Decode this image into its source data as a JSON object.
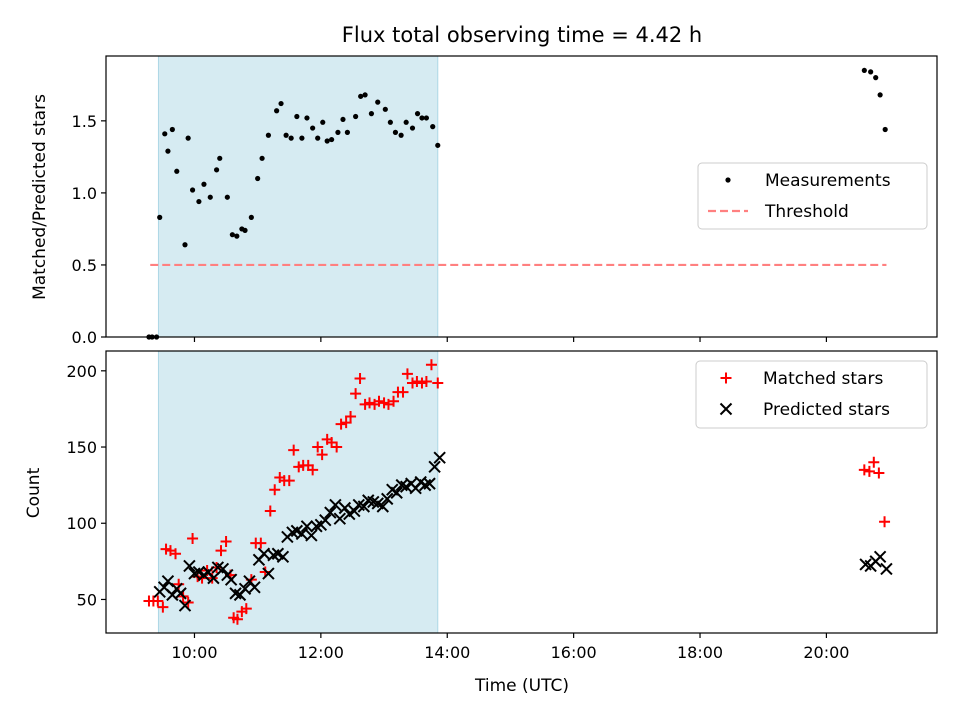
{
  "chart_data": [
    {
      "type": "scatter",
      "title": "Flux total observing time = 4.42 h",
      "xlabel": "",
      "ylabel": "Matched/Predicted stars",
      "xlim": [
        8.6,
        21.75
      ],
      "ylim": [
        0.0,
        1.95
      ],
      "yticks": [
        0.0,
        0.5,
        1.0,
        1.5
      ],
      "yticklabels": [
        "0.0",
        "0.5",
        "1.0",
        "1.5"
      ],
      "xticks": [
        10,
        12,
        14,
        16,
        18,
        20
      ],
      "shaded_span": [
        9.43,
        13.85
      ],
      "threshold": {
        "value": 0.5,
        "x_range": [
          9.3,
          20.95
        ],
        "color": "#ff8080"
      },
      "legend": {
        "position": "center-right",
        "entries": [
          "Measurements",
          "Threshold"
        ]
      },
      "series": [
        {
          "name": "Measurements",
          "color": "#000000",
          "x": [
            9.28,
            9.33,
            9.4,
            9.45,
            9.53,
            9.58,
            9.65,
            9.72,
            9.85,
            9.9,
            9.97,
            10.07,
            10.15,
            10.25,
            10.35,
            10.4,
            10.52,
            10.6,
            10.67,
            10.75,
            10.8,
            10.9,
            11.0,
            11.07,
            11.17,
            11.3,
            11.37,
            11.45,
            11.53,
            11.62,
            11.7,
            11.78,
            11.87,
            11.95,
            12.03,
            12.1,
            12.17,
            12.27,
            12.35,
            12.42,
            12.55,
            12.63,
            12.7,
            12.8,
            12.9,
            13.02,
            13.1,
            13.18,
            13.27,
            13.35,
            13.45,
            13.53,
            13.6,
            13.67,
            13.77,
            13.85,
            20.6,
            20.7,
            20.78,
            20.85,
            20.93
          ],
          "y": [
            0.0,
            0.0,
            0.0,
            0.83,
            1.41,
            1.29,
            1.44,
            1.15,
            0.64,
            1.38,
            1.02,
            0.94,
            1.06,
            0.97,
            1.16,
            1.24,
            0.97,
            0.71,
            0.7,
            0.75,
            0.74,
            0.83,
            1.1,
            1.24,
            1.4,
            1.57,
            1.62,
            1.4,
            1.38,
            1.53,
            1.38,
            1.52,
            1.45,
            1.38,
            1.49,
            1.36,
            1.37,
            1.42,
            1.51,
            1.42,
            1.53,
            1.67,
            1.68,
            1.55,
            1.63,
            1.58,
            1.49,
            1.42,
            1.4,
            1.49,
            1.45,
            1.55,
            1.52,
            1.52,
            1.46,
            1.33,
            1.85,
            1.84,
            1.8,
            1.68,
            1.44
          ]
        }
      ]
    },
    {
      "type": "scatter",
      "title": "",
      "xlabel": "Time (UTC)",
      "ylabel": "Count",
      "xlim": [
        8.6,
        21.75
      ],
      "ylim": [
        28,
        213
      ],
      "yticks": [
        50,
        100,
        150,
        200
      ],
      "yticklabels": [
        "50",
        "100",
        "150",
        "200"
      ],
      "xticks": [
        10,
        12,
        14,
        16,
        18,
        20
      ],
      "xticklabels": [
        "10:00",
        "12:00",
        "14:00",
        "16:00",
        "18:00",
        "20:00"
      ],
      "shaded_span": [
        9.43,
        13.85
      ],
      "legend": {
        "position": "top-right",
        "entries": [
          "Matched stars",
          "Predicted stars"
        ]
      },
      "series": [
        {
          "name": "Matched stars",
          "marker": "plus",
          "color": "#ff0000",
          "x": [
            9.28,
            9.35,
            9.42,
            9.5,
            9.55,
            9.62,
            9.7,
            9.75,
            9.82,
            9.9,
            9.97,
            10.05,
            10.12,
            10.2,
            10.28,
            10.35,
            10.42,
            10.5,
            10.57,
            10.62,
            10.68,
            10.75,
            10.82,
            10.9,
            10.97,
            11.05,
            11.12,
            11.2,
            11.27,
            11.35,
            11.42,
            11.5,
            11.57,
            11.65,
            11.72,
            11.8,
            11.87,
            11.95,
            12.02,
            12.1,
            12.17,
            12.25,
            12.32,
            12.4,
            12.47,
            12.55,
            12.62,
            12.7,
            12.77,
            12.85,
            12.92,
            13.0,
            13.07,
            13.15,
            13.22,
            13.3,
            13.37,
            13.45,
            13.52,
            13.6,
            13.67,
            13.75,
            13.85,
            20.6,
            20.68,
            20.75,
            20.83,
            20.92
          ],
          "y": [
            49,
            49,
            49,
            45,
            83,
            82,
            80,
            60,
            52,
            48,
            90,
            65,
            64,
            69,
            64,
            71,
            82,
            88,
            66,
            38,
            37,
            42,
            44,
            63,
            87,
            87,
            68,
            108,
            122,
            130,
            128,
            128,
            148,
            137,
            138,
            138,
            135,
            150,
            145,
            155,
            153,
            150,
            165,
            166,
            170,
            185,
            195,
            178,
            179,
            178,
            180,
            179,
            178,
            180,
            186,
            186,
            198,
            192,
            193,
            192,
            193,
            204,
            192,
            135,
            134,
            140,
            133,
            101
          ]
        },
        {
          "name": "Predicted stars",
          "marker": "x",
          "color": "#000000",
          "x": [
            9.45,
            9.52,
            9.58,
            9.65,
            9.72,
            9.78,
            9.85,
            9.92,
            10.0,
            10.07,
            10.15,
            10.22,
            10.3,
            10.37,
            10.45,
            10.52,
            10.58,
            10.65,
            10.72,
            10.8,
            10.87,
            10.95,
            11.02,
            11.1,
            11.17,
            11.25,
            11.32,
            11.4,
            11.47,
            11.55,
            11.62,
            11.7,
            11.78,
            11.85,
            11.93,
            12.0,
            12.07,
            12.15,
            12.23,
            12.3,
            12.38,
            12.45,
            12.53,
            12.6,
            12.68,
            12.75,
            12.83,
            12.9,
            12.98,
            13.05,
            13.13,
            13.2,
            13.28,
            13.35,
            13.43,
            13.5,
            13.58,
            13.65,
            13.72,
            13.8,
            13.88,
            20.62,
            20.7,
            20.78,
            20.85,
            20.95
          ],
          "y": [
            55,
            58,
            62,
            53,
            57,
            54,
            46,
            72,
            67,
            68,
            66,
            68,
            64,
            71,
            70,
            66,
            63,
            54,
            53,
            57,
            62,
            58,
            76,
            80,
            67,
            79,
            80,
            78,
            91,
            94,
            95,
            93,
            98,
            92,
            98,
            99,
            102,
            107,
            112,
            103,
            110,
            106,
            108,
            112,
            111,
            115,
            114,
            113,
            111,
            116,
            122,
            120,
            125,
            124,
            126,
            123,
            127,
            125,
            126,
            137,
            143,
            73,
            72,
            75,
            78,
            70
          ]
        }
      ]
    }
  ]
}
